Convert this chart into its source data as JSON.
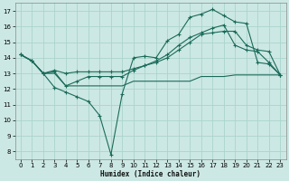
{
  "xlabel": "Humidex (Indice chaleur)",
  "bg_color": "#cce8e4",
  "grid_color": "#aad4cc",
  "line_color": "#1a6b5a",
  "xlim": [
    -0.5,
    23.5
  ],
  "ylim": [
    7.5,
    17.5
  ],
  "yticks": [
    8,
    9,
    10,
    11,
    12,
    13,
    14,
    15,
    16,
    17
  ],
  "xticks": [
    0,
    1,
    2,
    3,
    4,
    5,
    6,
    7,
    8,
    9,
    10,
    11,
    12,
    13,
    14,
    15,
    16,
    17,
    18,
    19,
    20,
    21,
    22,
    23
  ],
  "s1_x": [
    0,
    1,
    2,
    3,
    4,
    5,
    6,
    7,
    8,
    9,
    10,
    11,
    12,
    13,
    14,
    15,
    16,
    17,
    18,
    19,
    20,
    21,
    22,
    23
  ],
  "s1_y": [
    14.2,
    13.8,
    13.0,
    12.1,
    11.8,
    11.5,
    11.2,
    10.3,
    7.8,
    11.7,
    14.0,
    14.1,
    14.0,
    15.1,
    15.5,
    16.6,
    16.8,
    17.1,
    16.7,
    16.3,
    16.2,
    13.7,
    13.6,
    12.9
  ],
  "s2_x": [
    0,
    1,
    2,
    3,
    4,
    5,
    6,
    7,
    8,
    9,
    10,
    11,
    12,
    13,
    14,
    15,
    16,
    17,
    18,
    19,
    20,
    21,
    22,
    23
  ],
  "s2_y": [
    14.2,
    13.8,
    13.0,
    13.1,
    12.2,
    12.5,
    12.8,
    12.8,
    12.8,
    12.8,
    13.2,
    13.5,
    13.8,
    14.2,
    14.8,
    15.3,
    15.6,
    15.9,
    16.1,
    14.8,
    14.5,
    14.4,
    13.7,
    12.9
  ],
  "s3_x": [
    0,
    1,
    2,
    3,
    4,
    5,
    6,
    7,
    8,
    9,
    10,
    11,
    12,
    13,
    14,
    15,
    16,
    17,
    18,
    19,
    20,
    21,
    22,
    23
  ],
  "s3_y": [
    14.2,
    13.8,
    13.0,
    13.0,
    12.2,
    12.2,
    12.2,
    12.2,
    12.2,
    12.2,
    12.5,
    12.5,
    12.5,
    12.5,
    12.5,
    12.5,
    12.8,
    12.8,
    12.8,
    12.9,
    12.9,
    12.9,
    12.9,
    12.9
  ],
  "s4_x": [
    0,
    1,
    2,
    3,
    4,
    5,
    6,
    7,
    8,
    9,
    10,
    11,
    12,
    13,
    14,
    15,
    16,
    17,
    18,
    19,
    20,
    21,
    22,
    23
  ],
  "s4_y": [
    14.2,
    13.8,
    13.0,
    13.2,
    13.0,
    13.1,
    13.1,
    13.1,
    13.1,
    13.1,
    13.3,
    13.5,
    13.7,
    14.0,
    14.5,
    15.0,
    15.5,
    15.6,
    15.7,
    15.7,
    14.8,
    14.5,
    14.4,
    12.9
  ]
}
